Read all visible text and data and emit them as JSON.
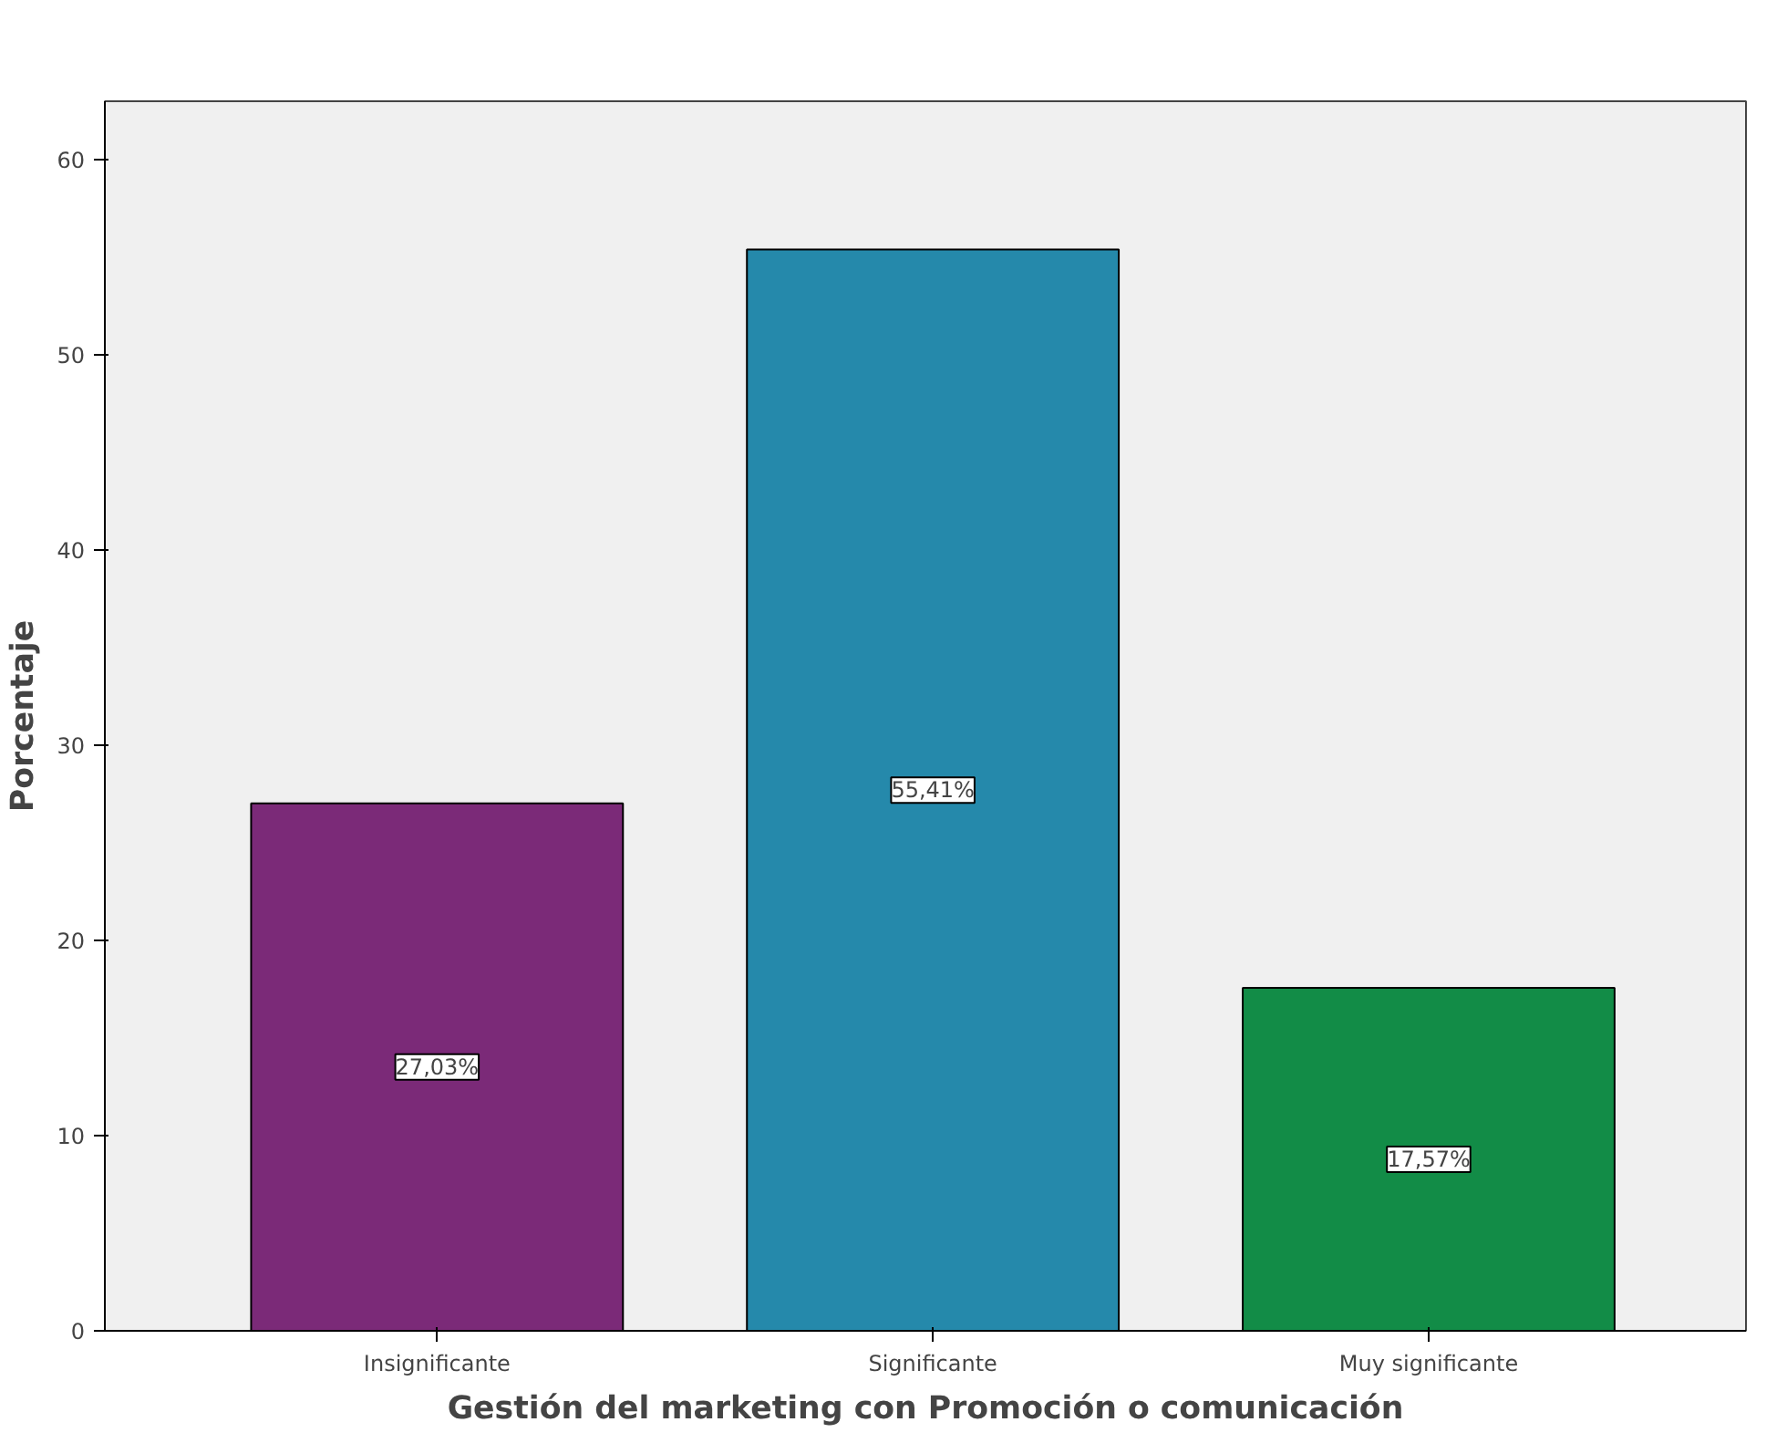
{
  "chart_data": {
    "type": "bar",
    "xlabel": "Gestión del marketing con Promoción o comunicación",
    "ylabel": "Porcentaje",
    "categories": [
      "Insignificante",
      "Significante",
      "Muy significante"
    ],
    "values": [
      27.03,
      55.41,
      17.57
    ],
    "colors": [
      "#7b2a78",
      "#2589ab",
      "#128c47"
    ],
    "value_labels": [
      "27,03%",
      "55,41%",
      "17,57%"
    ],
    "ylim": [
      0,
      63
    ],
    "yticks": [
      0,
      10,
      20,
      30,
      40,
      50,
      60
    ]
  }
}
